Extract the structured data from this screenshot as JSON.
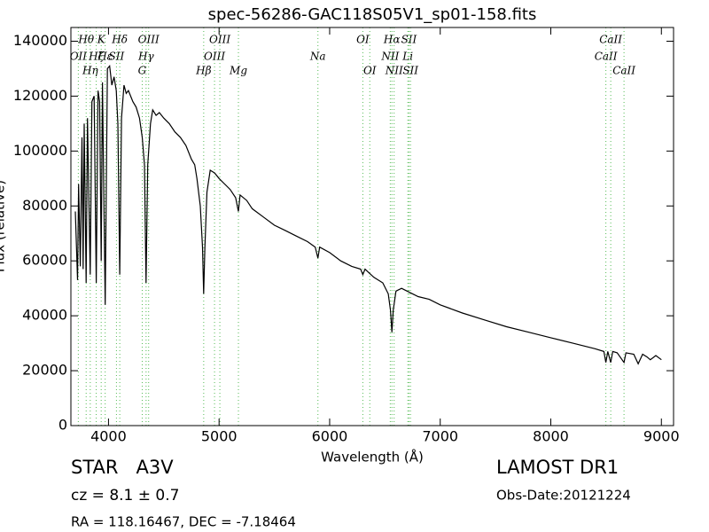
{
  "chart_data": {
    "type": "line",
    "title": "spec-56286-GAC118S05V1_sp01-158.fits",
    "x_label": "Wavelength (Å)",
    "y_label": "Flux (relative)",
    "color": "#000000",
    "line_color": "#55bb55",
    "xlim": [
      3660,
      9110
    ],
    "ylim": [
      0,
      145000
    ],
    "xticks": [
      4000,
      5000,
      6000,
      7000,
      8000,
      9000
    ],
    "yticks": [
      0,
      20000,
      40000,
      60000,
      80000,
      100000,
      120000,
      140000
    ],
    "x": [
      3700,
      3720,
      3730,
      3745,
      3760,
      3771,
      3780,
      3798,
      3810,
      3835,
      3850,
      3870,
      3889,
      3905,
      3920,
      3934,
      3945,
      3970,
      3990,
      4010,
      4030,
      4050,
      4070,
      4085,
      4102,
      4118,
      4140,
      4160,
      4180,
      4200,
      4220,
      4250,
      4280,
      4305,
      4325,
      4340,
      4355,
      4380,
      4400,
      4430,
      4460,
      4500,
      4550,
      4600,
      4650,
      4700,
      4750,
      4780,
      4800,
      4830,
      4850,
      4861,
      4872,
      4890,
      4920,
      4960,
      5000,
      5050,
      5100,
      5150,
      5175,
      5190,
      5250,
      5300,
      5400,
      5500,
      5600,
      5700,
      5800,
      5870,
      5894,
      5910,
      6000,
      6100,
      6200,
      6280,
      6300,
      6320,
      6400,
      6480,
      6530,
      6550,
      6563,
      6575,
      6600,
      6650,
      6700,
      6800,
      6900,
      7000,
      7200,
      7400,
      7600,
      7800,
      8000,
      8200,
      8400,
      8480,
      8498,
      8515,
      8542,
      8560,
      8600,
      8662,
      8680,
      8750,
      8790,
      8830,
      8870,
      8900,
      8950,
      9000
    ],
    "values": [
      78000,
      53000,
      88000,
      58000,
      105000,
      57000,
      110000,
      52000,
      112000,
      55000,
      118000,
      120000,
      52000,
      122000,
      118000,
      60000,
      125000,
      44000,
      130000,
      131000,
      124000,
      127000,
      122000,
      110000,
      55000,
      112000,
      124000,
      121000,
      122000,
      120000,
      118000,
      116000,
      112000,
      105000,
      95000,
      52000,
      95000,
      110000,
      115000,
      113000,
      114000,
      112000,
      110000,
      107000,
      105000,
      102000,
      97000,
      95000,
      90000,
      80000,
      65000,
      48000,
      65000,
      85000,
      93000,
      92000,
      90000,
      88000,
      86000,
      83000,
      78000,
      84000,
      82000,
      79000,
      76000,
      73000,
      71000,
      69000,
      67000,
      65000,
      61000,
      65000,
      63000,
      60000,
      58000,
      57000,
      55000,
      57000,
      54000,
      52000,
      48000,
      42000,
      34000,
      42000,
      49000,
      50000,
      49000,
      47000,
      46000,
      44000,
      41000,
      38500,
      36000,
      34000,
      32000,
      30000,
      28000,
      27000,
      23000,
      27000,
      23000,
      27000,
      26500,
      23000,
      26500,
      26000,
      22500,
      26000,
      25000,
      24000,
      25500,
      24000
    ],
    "lines": [
      {
        "label": "OII",
        "wavelength": 3727
      },
      {
        "label": "Hθ",
        "wavelength": 3798
      },
      {
        "label": "Hη",
        "wavelength": 3835
      },
      {
        "label": "Hζ",
        "wavelength": 3889
      },
      {
        "label": "K",
        "wavelength": 3934
      },
      {
        "label": "Hε",
        "wavelength": 3970
      },
      {
        "label": "SII",
        "wavelength": 4072
      },
      {
        "label": "Hδ",
        "wavelength": 4102
      },
      {
        "label": "G",
        "wavelength": 4305
      },
      {
        "label": "Hγ",
        "wavelength": 4340
      },
      {
        "label": "OIII",
        "wavelength": 4363
      },
      {
        "label": "Hβ",
        "wavelength": 4861
      },
      {
        "label": "OIII",
        "wavelength": 4959
      },
      {
        "label": "OIII",
        "wavelength": 5007
      },
      {
        "label": "Mg",
        "wavelength": 5175
      },
      {
        "label": "Na",
        "wavelength": 5894
      },
      {
        "label": "OI",
        "wavelength": 6300
      },
      {
        "label": "OI",
        "wavelength": 6363
      },
      {
        "label": "NII",
        "wavelength": 6548
      },
      {
        "label": "Hα",
        "wavelength": 6563
      },
      {
        "label": "NII",
        "wavelength": 6583
      },
      {
        "label": "Li",
        "wavelength": 6707
      },
      {
        "label": "SII",
        "wavelength": 6717
      },
      {
        "label": "SII",
        "wavelength": 6731
      },
      {
        "label": "CaII",
        "wavelength": 8498
      },
      {
        "label": "CaII",
        "wavelength": 8542
      },
      {
        "label": "CaII",
        "wavelength": 8662
      }
    ]
  },
  "info": {
    "object": "STAR   A3V",
    "cz": "cz = 8.1 ± 0.7",
    "coords": "RA = 118.16467, DEC = -7.18464",
    "survey": "LAMOST DR1",
    "date": "Obs-Date:20121224"
  }
}
